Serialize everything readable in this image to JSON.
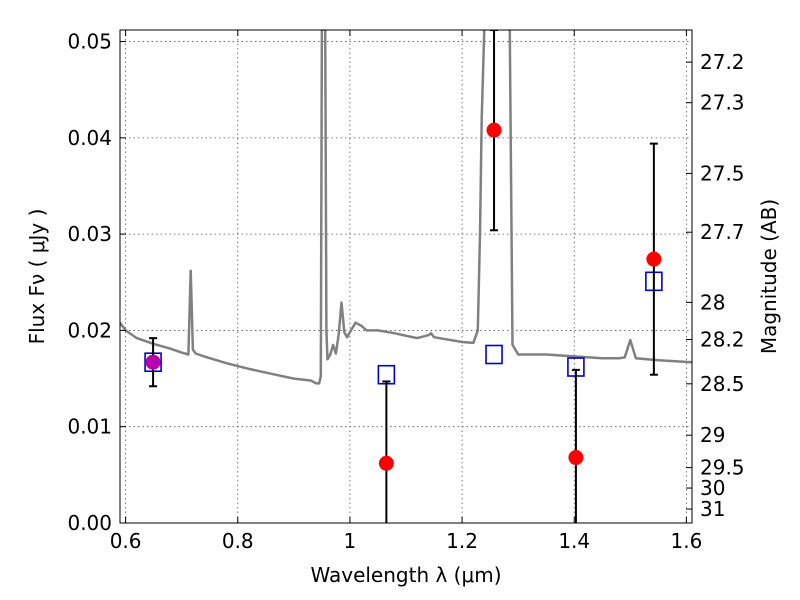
{
  "chart_data": {
    "type": "scatter",
    "xlabel": "Wavelength  λ (μm)",
    "ylabel": "Flux  Fν  ( μJy )",
    "y2label": "Magnitude (AB)",
    "xlim": [
      0.59,
      1.61
    ],
    "ylim": [
      0.0,
      0.0512
    ],
    "grid": true,
    "x_ticks": [
      {
        "value": 0.6,
        "label": "0.6"
      },
      {
        "value": 0.8,
        "label": "0.8"
      },
      {
        "value": 1.0,
        "label": "1"
      },
      {
        "value": 1.2,
        "label": "1.2"
      },
      {
        "value": 1.4,
        "label": "1.4"
      },
      {
        "value": 1.6,
        "label": "1.6"
      }
    ],
    "y_ticks": [
      {
        "value": 0.0,
        "label": "0.00"
      },
      {
        "value": 0.01,
        "label": "0.01"
      },
      {
        "value": 0.02,
        "label": "0.02"
      },
      {
        "value": 0.03,
        "label": "0.03"
      },
      {
        "value": 0.04,
        "label": "0.04"
      },
      {
        "value": 0.05,
        "label": "0.05"
      }
    ],
    "mag_ticks": [
      {
        "mag": 27.2,
        "label": "27.2"
      },
      {
        "mag": 27.3,
        "label": "27.3"
      },
      {
        "mag": 27.5,
        "label": "27.5"
      },
      {
        "mag": 27.7,
        "label": "27.7"
      },
      {
        "mag": 28.0,
        "label": "28"
      },
      {
        "mag": 28.2,
        "label": "28.2"
      },
      {
        "mag": 28.5,
        "label": "28.5"
      },
      {
        "mag": 29.0,
        "label": "29"
      },
      {
        "mag": 29.5,
        "label": "29.5"
      },
      {
        "mag": 30.0,
        "label": "30"
      },
      {
        "mag": 31.0,
        "label": "31"
      }
    ],
    "series": [
      {
        "kind": "line",
        "color": "#808080",
        "x": [
          0.59,
          0.6,
          0.62,
          0.65,
          0.68,
          0.7,
          0.712,
          0.716,
          0.72,
          0.725,
          0.74,
          0.78,
          0.82,
          0.86,
          0.9,
          0.93,
          0.94,
          0.945,
          0.948,
          0.95,
          0.953,
          0.956,
          0.958,
          0.96,
          0.965,
          0.97,
          0.975,
          0.98,
          0.985,
          0.99,
          0.995,
          1.0,
          1.01,
          1.02,
          1.03,
          1.05,
          1.08,
          1.12,
          1.14,
          1.145,
          1.15,
          1.2,
          1.22,
          1.228,
          1.232,
          1.235,
          1.24,
          1.245,
          1.25,
          1.255,
          1.26,
          1.265,
          1.27,
          1.275,
          1.28,
          1.285,
          1.29,
          1.3,
          1.35,
          1.4,
          1.45,
          1.48,
          1.49,
          1.5,
          1.51,
          1.55,
          1.58,
          1.61
        ],
        "y": [
          0.0208,
          0.02,
          0.0192,
          0.0186,
          0.0181,
          0.0177,
          0.0175,
          0.0262,
          0.018,
          0.0176,
          0.0173,
          0.0166,
          0.016,
          0.0155,
          0.015,
          0.0148,
          0.0145,
          0.0145,
          0.0152,
          0.052,
          0.052,
          0.052,
          0.02,
          0.017,
          0.0175,
          0.0185,
          0.0176,
          0.0196,
          0.0229,
          0.0198,
          0.0193,
          0.0198,
          0.0208,
          0.0205,
          0.02,
          0.02,
          0.0197,
          0.0192,
          0.0195,
          0.0197,
          0.0193,
          0.0188,
          0.0187,
          0.02,
          0.03,
          0.042,
          0.052,
          0.052,
          0.052,
          0.052,
          0.052,
          0.052,
          0.052,
          0.052,
          0.052,
          0.052,
          0.0185,
          0.0175,
          0.0175,
          0.0173,
          0.0171,
          0.0171,
          0.0172,
          0.019,
          0.0171,
          0.0169,
          0.0168,
          0.0167
        ]
      },
      {
        "kind": "points",
        "marker": "circle",
        "color": "#ff0000",
        "points": [
          {
            "x": 0.649,
            "y": 0.0167,
            "err": 0.0025
          },
          {
            "x": 1.065,
            "y": 0.0062,
            "err": 0.0085
          },
          {
            "x": 1.257,
            "y": 0.0408,
            "err": 0.0104
          },
          {
            "x": 1.403,
            "y": 0.0068,
            "err": 0.0091
          },
          {
            "x": 1.542,
            "y": 0.0274,
            "err": 0.012
          }
        ]
      },
      {
        "kind": "points",
        "marker": "square",
        "color": "#0000cc",
        "points": [
          {
            "x": 0.649,
            "y": 0.0167
          },
          {
            "x": 1.065,
            "y": 0.0154
          },
          {
            "x": 1.257,
            "y": 0.0175
          },
          {
            "x": 1.403,
            "y": 0.0162
          },
          {
            "x": 1.542,
            "y": 0.0251
          }
        ]
      }
    ]
  }
}
